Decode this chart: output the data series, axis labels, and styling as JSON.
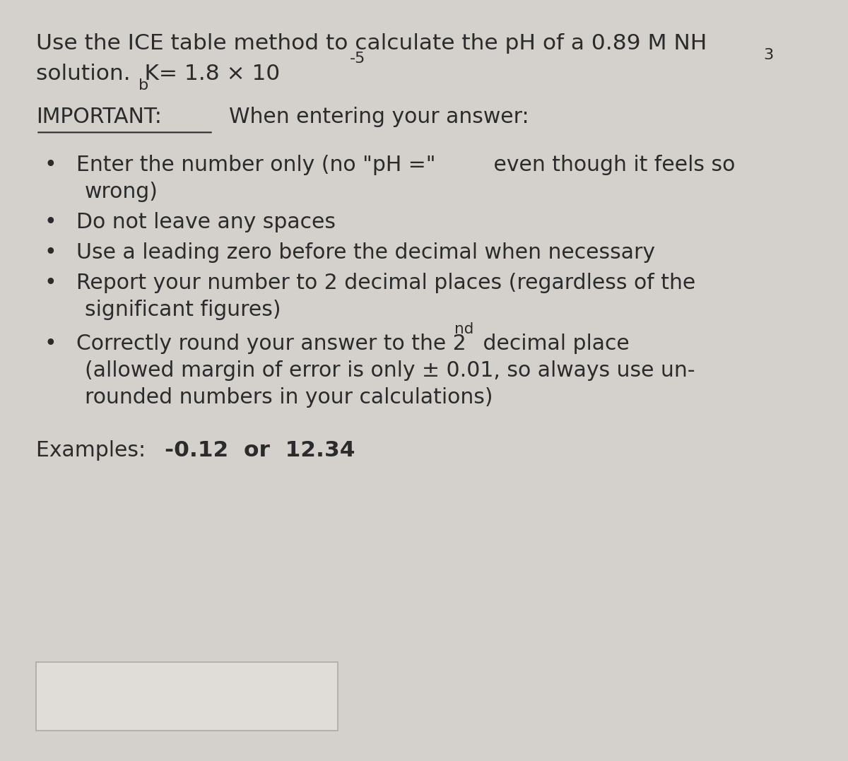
{
  "bg_color": "#d4d0cc",
  "text_color": "#2b2b2b",
  "title_line1": "Use the ICE table method to calculate the pH of a 0.89 M NH",
  "title_nh3_sub": "3",
  "title_line2_pre": "solution.  K",
  "title_line2_sub": "b",
  "title_line2_mid": " = 1.8 × 10",
  "title_line2_sup": "-5",
  "important_label": "IMPORTANT:",
  "important_rest": "  When entering your answer:",
  "bullet_char": "•",
  "examples_label": "Examples:  ",
  "examples_bold": "-0.12  or  12.34",
  "figsize": [
    12.0,
    10.77
  ],
  "dpi": 100
}
